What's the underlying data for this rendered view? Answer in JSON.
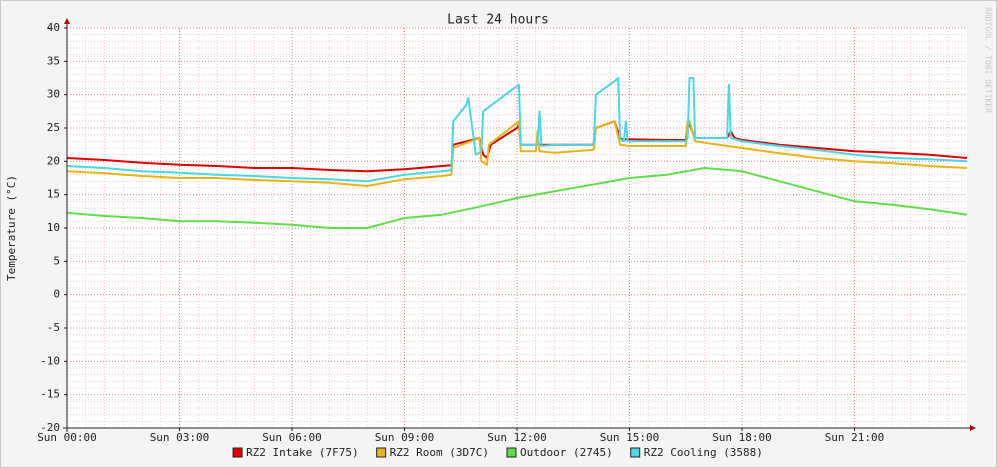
{
  "chart_data": {
    "type": "line",
    "title": "Last 24 hours",
    "y_label": "Temperature (°C)",
    "watermark": "RRDTOOL / TOBI OETIKER",
    "xlim": [
      0,
      24
    ],
    "xticks": [
      {
        "value": 0,
        "label": "Sun 00:00"
      },
      {
        "value": 3,
        "label": "Sun 03:00"
      },
      {
        "value": 6,
        "label": "Sun 06:00"
      },
      {
        "value": 9,
        "label": "Sun 09:00"
      },
      {
        "value": 12,
        "label": "Sun 12:00"
      },
      {
        "value": 15,
        "label": "Sun 15:00"
      },
      {
        "value": 18,
        "label": "Sun 18:00"
      },
      {
        "value": 21,
        "label": "Sun 21:00"
      }
    ],
    "ylim": [
      -20,
      40
    ],
    "yticks": [
      -20,
      -15,
      -10,
      -5,
      0,
      5,
      10,
      15,
      20,
      25,
      30,
      35,
      40
    ],
    "grid": true,
    "legend": "bottom",
    "series": [
      {
        "name": "RZ2 Intake (7F75)",
        "color": "#e00000",
        "x": [
          0,
          1,
          2,
          3,
          4,
          5,
          6,
          7,
          8,
          9,
          10,
          10.25,
          10.3,
          11,
          11.1,
          11.2,
          11.3,
          12,
          12.05,
          12.1,
          12.5,
          13,
          14,
          14.05,
          14.1,
          14.6,
          14.75,
          14.8,
          15,
          16,
          16.5,
          16.55,
          16.6,
          16.75,
          17,
          17.6,
          17.7,
          17.8,
          18,
          19,
          20,
          21,
          22,
          23,
          24
        ],
        "values": [
          20.5,
          20.2,
          19.8,
          19.5,
          19.3,
          19,
          19,
          18.7,
          18.5,
          18.8,
          19.3,
          19.4,
          22.5,
          23.5,
          21,
          20.5,
          22.5,
          25,
          25.5,
          22.5,
          22.5,
          22.5,
          22.5,
          22.5,
          25,
          26,
          23.5,
          23.3,
          23.3,
          23.2,
          23.2,
          25.5,
          25.5,
          23.5,
          23.5,
          23.5,
          24.5,
          23.5,
          23.2,
          22.5,
          22,
          21.5,
          21.3,
          21,
          20.5
        ]
      },
      {
        "name": "RZ2 Room (3D7C)",
        "color": "#e8b418",
        "x": [
          0,
          1,
          2,
          3,
          4,
          5,
          6,
          7,
          8,
          9,
          10,
          10.25,
          10.3,
          11,
          11.05,
          11.2,
          11.25,
          12,
          12.05,
          12.1,
          12.5,
          12.55,
          12.6,
          13,
          14,
          14.05,
          14.1,
          14.6,
          14.75,
          15,
          16,
          16.5,
          16.55,
          16.6,
          16.75,
          17,
          18,
          19,
          20,
          21,
          22,
          23,
          24
        ],
        "values": [
          18.5,
          18.2,
          17.8,
          17.5,
          17.5,
          17.2,
          17,
          16.8,
          16.3,
          17.3,
          17.8,
          18,
          22,
          23.5,
          20,
          19.5,
          22.5,
          25.8,
          26,
          21.5,
          21.5,
          24.5,
          21.5,
          21.3,
          21.7,
          21.8,
          25,
          26,
          22.5,
          22.3,
          22.3,
          22.3,
          26,
          26,
          23,
          22.8,
          22,
          21.2,
          20.5,
          20,
          19.7,
          19.3,
          19
        ]
      },
      {
        "name": "Outdoor (2745)",
        "color": "#5ee04a",
        "x": [
          0,
          1,
          2,
          3,
          4,
          5,
          6,
          7,
          8,
          9,
          10,
          11,
          12,
          13,
          14,
          15,
          16,
          17,
          18,
          19,
          20,
          21,
          22,
          23,
          24
        ],
        "values": [
          12.3,
          11.8,
          11.5,
          11,
          11,
          10.8,
          10.5,
          10,
          10,
          11.5,
          12,
          13.2,
          14.5,
          15.5,
          16.5,
          17.5,
          18,
          19,
          18.5,
          17,
          15.5,
          14,
          13.5,
          12.8,
          12
        ]
      },
      {
        "name": "RZ2 Cooling (3588)",
        "color": "#4ad8e4",
        "x": [
          0,
          1,
          2,
          3,
          4,
          5,
          6,
          7,
          8,
          9,
          10,
          10.25,
          10.3,
          10.65,
          10.7,
          10.9,
          11.05,
          11.1,
          12,
          12.05,
          12.1,
          12.55,
          12.6,
          12.65,
          13,
          14,
          14.05,
          14.1,
          14.6,
          14.7,
          14.75,
          14.85,
          14.9,
          14.95,
          16,
          16.5,
          16.55,
          16.6,
          16.7,
          16.75,
          17,
          17.6,
          17.65,
          17.7,
          18,
          19,
          20,
          21,
          22,
          23,
          24
        ],
        "values": [
          19.3,
          19,
          18.5,
          18.3,
          18,
          17.8,
          17.5,
          17.3,
          17,
          18,
          18.5,
          18.7,
          26,
          28.5,
          29.5,
          21,
          21.5,
          27.5,
          31.3,
          31.5,
          22.5,
          22.5,
          27.5,
          22.3,
          22.5,
          22.5,
          22.7,
          30,
          32,
          32.5,
          23.3,
          23,
          26,
          23,
          23,
          23,
          23.5,
          32.5,
          32.5,
          23.5,
          23.5,
          23.5,
          31.5,
          23.5,
          23,
          22.3,
          21.7,
          21,
          20.5,
          20.3,
          20
        ]
      }
    ]
  }
}
